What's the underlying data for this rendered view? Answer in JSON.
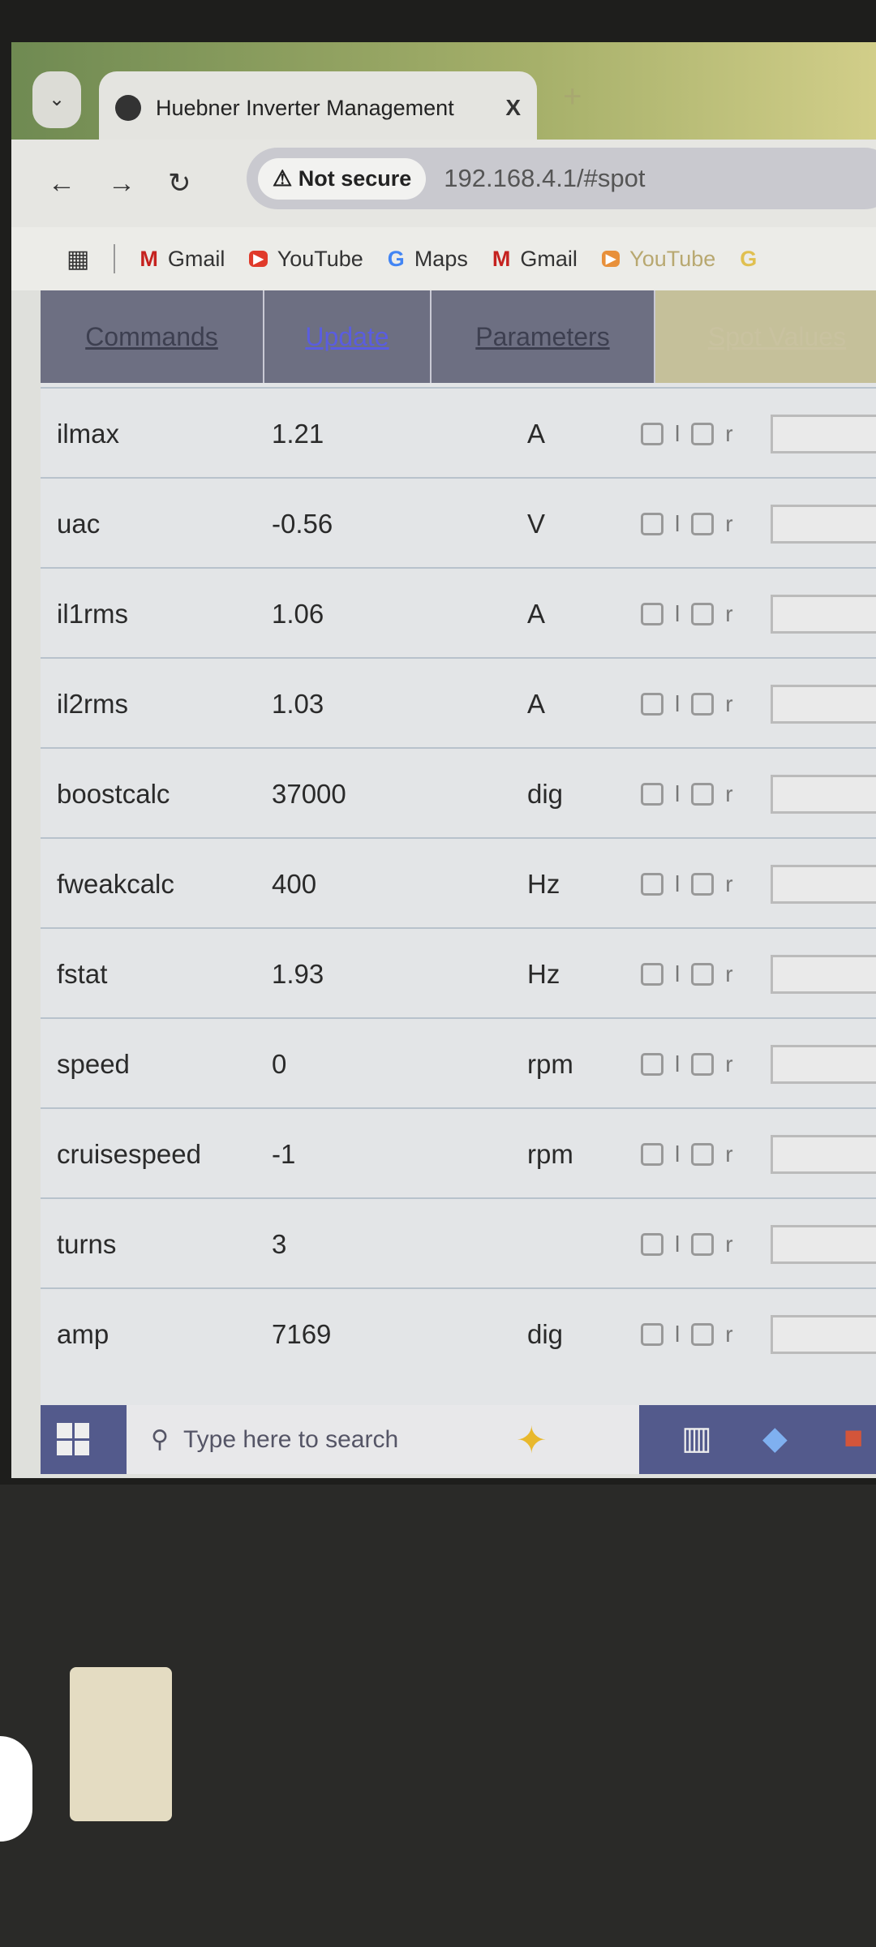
{
  "browser": {
    "tab_title": "Huebner Inverter Management",
    "close": "X",
    "new_tab": "+",
    "not_secure": "Not secure",
    "url": "192.168.4.1/#spot",
    "bookmarks": [
      {
        "icon": "gmail-icon",
        "label": "Gmail"
      },
      {
        "icon": "youtube-icon",
        "label": "YouTube"
      },
      {
        "icon": "google-icon",
        "label": "Maps"
      },
      {
        "icon": "gmail-icon",
        "label": "Gmail"
      },
      {
        "icon": "youtube-icon",
        "label": "YouTube"
      }
    ]
  },
  "nav": [
    {
      "label": "Commands"
    },
    {
      "label": "Update"
    },
    {
      "label": "Parameters"
    },
    {
      "label": "Spot Values"
    }
  ],
  "checkbox_labels": {
    "left": "l",
    "right": "r"
  },
  "spot_values": [
    {
      "name": "ilmax",
      "value": "1.21",
      "unit": "A"
    },
    {
      "name": "uac",
      "value": "-0.56",
      "unit": "V"
    },
    {
      "name": "il1rms",
      "value": "1.06",
      "unit": "A"
    },
    {
      "name": "il2rms",
      "value": "1.03",
      "unit": "A"
    },
    {
      "name": "boostcalc",
      "value": "37000",
      "unit": "dig"
    },
    {
      "name": "fweakcalc",
      "value": "400",
      "unit": "Hz"
    },
    {
      "name": "fstat",
      "value": "1.93",
      "unit": "Hz"
    },
    {
      "name": "speed",
      "value": "0",
      "unit": "rpm"
    },
    {
      "name": "cruisespeed",
      "value": "-1",
      "unit": "rpm"
    },
    {
      "name": "turns",
      "value": "3",
      "unit": ""
    },
    {
      "name": "amp",
      "value": "7169",
      "unit": "dig"
    }
  ],
  "taskbar": {
    "search_placeholder": "Type here to search"
  }
}
